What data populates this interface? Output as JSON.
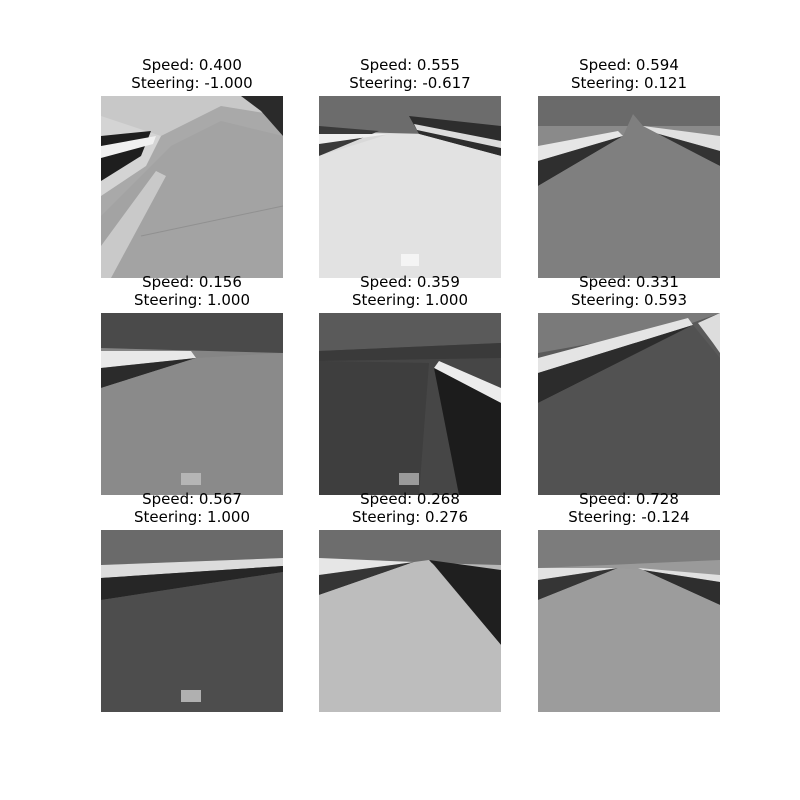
{
  "panels": [
    {
      "speed": "Speed: 0.400",
      "steering": "Steering: -1.000"
    },
    {
      "speed": "Speed: 0.555",
      "steering": "Steering: -0.617"
    },
    {
      "speed": "Speed: 0.594",
      "steering": "Steering: 0.121"
    },
    {
      "speed": "Speed: 0.156",
      "steering": "Steering: 1.000"
    },
    {
      "speed": "Speed: 0.359",
      "steering": "Steering: 1.000"
    },
    {
      "speed": "Speed: 0.331",
      "steering": "Steering: 0.593"
    },
    {
      "speed": "Speed: 0.567",
      "steering": "Steering: 1.000"
    },
    {
      "speed": "Speed: 0.268",
      "steering": "Steering: 0.276"
    },
    {
      "speed": "Speed: 0.728",
      "steering": "Steering: -0.124"
    }
  ]
}
